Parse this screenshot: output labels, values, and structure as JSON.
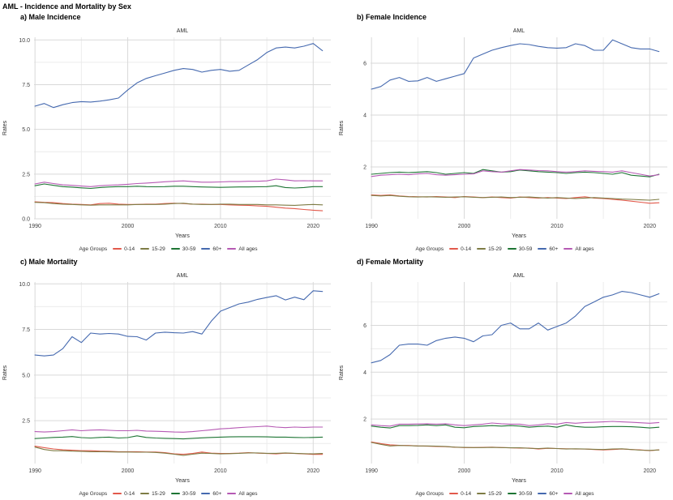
{
  "title": "AML - Incidence and Mortality by Sex",
  "legend": {
    "title": "Age Groups",
    "items": [
      {
        "label": "0-14",
        "color": "#E2594B"
      },
      {
        "label": "15-29",
        "color": "#7E7C45"
      },
      {
        "label": "30-59",
        "color": "#1E7534"
      },
      {
        "label": "60+",
        "color": "#4569AF"
      },
      {
        "label": "All ages",
        "color": "#B65AB4"
      }
    ]
  },
  "axis": {
    "xlabel": "Years",
    "ylabel": "Rates",
    "xticks": [
      1990,
      2000,
      2010,
      2020
    ],
    "xminor": [
      1995,
      2005,
      2015
    ],
    "grid": true,
    "legend_position": "bottom"
  },
  "years": [
    1990,
    1991,
    1992,
    1993,
    1994,
    1995,
    1996,
    1997,
    1998,
    1999,
    2000,
    2001,
    2002,
    2003,
    2004,
    2005,
    2006,
    2007,
    2008,
    2009,
    2010,
    2011,
    2012,
    2013,
    2014,
    2015,
    2016,
    2017,
    2018,
    2019,
    2020,
    2021
  ],
  "chart_data": [
    {
      "id": "a",
      "type": "line",
      "panel_label": "a) Male Incidence",
      "title": "AML",
      "xlabel": "Years",
      "ylabel": "Rates",
      "ylim": [
        0,
        10.15
      ],
      "yticks": [
        0,
        2.5,
        5,
        7.5,
        10
      ],
      "ytick_labels": [
        "0.0",
        "2.5",
        "5.0",
        "7.5",
        "10.0"
      ],
      "yminor": [
        1.25,
        3.75,
        6.25,
        8.75
      ],
      "series": [
        {
          "name": "0-14",
          "values": [
            0.95,
            0.92,
            0.9,
            0.85,
            0.82,
            0.8,
            0.78,
            0.85,
            0.87,
            0.82,
            0.8,
            0.8,
            0.82,
            0.82,
            0.85,
            0.87,
            0.85,
            0.82,
            0.82,
            0.8,
            0.8,
            0.78,
            0.76,
            0.75,
            0.72,
            0.7,
            0.65,
            0.6,
            0.57,
            0.52,
            0.48,
            0.45
          ]
        },
        {
          "name": "15-29",
          "values": [
            0.92,
            0.9,
            0.85,
            0.82,
            0.8,
            0.78,
            0.76,
            0.78,
            0.78,
            0.78,
            0.78,
            0.8,
            0.8,
            0.8,
            0.82,
            0.85,
            0.87,
            0.82,
            0.8,
            0.8,
            0.82,
            0.82,
            0.8,
            0.8,
            0.8,
            0.78,
            0.78,
            0.76,
            0.75,
            0.78,
            0.8,
            0.78
          ]
        },
        {
          "name": "30-59",
          "values": [
            1.85,
            1.95,
            1.87,
            1.8,
            1.77,
            1.73,
            1.7,
            1.75,
            1.78,
            1.8,
            1.8,
            1.82,
            1.8,
            1.79,
            1.8,
            1.82,
            1.82,
            1.8,
            1.78,
            1.77,
            1.76,
            1.77,
            1.78,
            1.78,
            1.79,
            1.8,
            1.85,
            1.75,
            1.72,
            1.75,
            1.8,
            1.8
          ]
        },
        {
          "name": "60+",
          "values": [
            6.3,
            6.45,
            6.22,
            6.38,
            6.5,
            6.55,
            6.53,
            6.58,
            6.65,
            6.75,
            7.2,
            7.6,
            7.85,
            8.0,
            8.15,
            8.3,
            8.4,
            8.35,
            8.2,
            8.3,
            8.35,
            8.25,
            8.3,
            8.6,
            8.9,
            9.3,
            9.55,
            9.6,
            9.55,
            9.65,
            9.8,
            9.4
          ]
        },
        {
          "name": "All ages",
          "values": [
            1.95,
            2.05,
            1.97,
            1.9,
            1.87,
            1.83,
            1.8,
            1.85,
            1.88,
            1.9,
            1.93,
            1.97,
            2.0,
            2.03,
            2.07,
            2.1,
            2.12,
            2.08,
            2.05,
            2.05,
            2.06,
            2.08,
            2.08,
            2.1,
            2.1,
            2.12,
            2.22,
            2.18,
            2.12,
            2.13,
            2.12,
            2.12
          ]
        }
      ]
    },
    {
      "id": "b",
      "type": "line",
      "panel_label": "b) Female Incidence",
      "title": "AML",
      "xlabel": "Years",
      "ylabel": "Rates",
      "ylim": [
        0,
        7.0
      ],
      "yticks": [
        2,
        4,
        6
      ],
      "ytick_labels": [
        "2",
        "4",
        "6"
      ],
      "yminor": [
        1,
        3,
        5,
        7
      ],
      "series": [
        {
          "name": "0-14",
          "values": [
            0.92,
            0.9,
            0.92,
            0.88,
            0.86,
            0.85,
            0.84,
            0.86,
            0.84,
            0.82,
            0.86,
            0.84,
            0.82,
            0.84,
            0.82,
            0.8,
            0.84,
            0.82,
            0.8,
            0.82,
            0.8,
            0.78,
            0.82,
            0.85,
            0.8,
            0.78,
            0.75,
            0.72,
            0.68,
            0.64,
            0.6,
            0.62
          ]
        },
        {
          "name": "15-29",
          "values": [
            0.9,
            0.88,
            0.9,
            0.87,
            0.85,
            0.84,
            0.85,
            0.84,
            0.83,
            0.84,
            0.85,
            0.83,
            0.82,
            0.83,
            0.84,
            0.82,
            0.83,
            0.84,
            0.82,
            0.8,
            0.82,
            0.8,
            0.78,
            0.8,
            0.82,
            0.8,
            0.78,
            0.76,
            0.75,
            0.73,
            0.72,
            0.75
          ]
        },
        {
          "name": "30-59",
          "values": [
            1.72,
            1.75,
            1.78,
            1.8,
            1.78,
            1.8,
            1.82,
            1.78,
            1.72,
            1.75,
            1.78,
            1.75,
            1.9,
            1.85,
            1.8,
            1.82,
            1.88,
            1.85,
            1.82,
            1.8,
            1.78,
            1.75,
            1.78,
            1.8,
            1.78,
            1.75,
            1.72,
            1.78,
            1.68,
            1.65,
            1.62,
            1.72
          ]
        },
        {
          "name": "60+",
          "values": [
            5.0,
            5.1,
            5.35,
            5.45,
            5.3,
            5.32,
            5.45,
            5.3,
            5.4,
            5.5,
            5.6,
            6.2,
            6.35,
            6.5,
            6.6,
            6.68,
            6.75,
            6.72,
            6.65,
            6.6,
            6.58,
            6.6,
            6.75,
            6.68,
            6.5,
            6.5,
            6.9,
            6.75,
            6.6,
            6.55,
            6.55,
            6.45
          ]
        },
        {
          "name": "All ages",
          "values": [
            1.63,
            1.68,
            1.7,
            1.72,
            1.7,
            1.73,
            1.75,
            1.7,
            1.68,
            1.7,
            1.72,
            1.73,
            1.85,
            1.82,
            1.8,
            1.85,
            1.9,
            1.88,
            1.86,
            1.85,
            1.82,
            1.8,
            1.82,
            1.85,
            1.83,
            1.82,
            1.8,
            1.85,
            1.78,
            1.72,
            1.65,
            1.7
          ]
        }
      ]
    },
    {
      "id": "c",
      "type": "line",
      "panel_label": "c) Male Mortality",
      "title": "AML",
      "xlabel": "Years",
      "ylabel": "Rates",
      "ylim": [
        0.15,
        10.1
      ],
      "yticks": [
        2.5,
        5,
        7.5,
        10
      ],
      "ytick_labels": [
        "2.5",
        "5.0",
        "7.5",
        "10.0"
      ],
      "yminor": [
        1.25,
        3.75,
        6.25,
        8.75
      ],
      "series": [
        {
          "name": "0-14",
          "values": [
            1.1,
            1.02,
            0.95,
            0.9,
            0.88,
            0.85,
            0.85,
            0.83,
            0.82,
            0.8,
            0.8,
            0.8,
            0.78,
            0.78,
            0.75,
            0.68,
            0.66,
            0.7,
            0.78,
            0.72,
            0.7,
            0.7,
            0.72,
            0.75,
            0.72,
            0.7,
            0.68,
            0.72,
            0.7,
            0.68,
            0.65,
            0.65
          ]
        },
        {
          "name": "15-29",
          "values": [
            1.05,
            0.92,
            0.85,
            0.85,
            0.83,
            0.82,
            0.8,
            0.8,
            0.79,
            0.78,
            0.78,
            0.77,
            0.77,
            0.76,
            0.72,
            0.66,
            0.6,
            0.66,
            0.72,
            0.7,
            0.68,
            0.69,
            0.71,
            0.73,
            0.73,
            0.71,
            0.71,
            0.73,
            0.71,
            0.69,
            0.68,
            0.7
          ]
        },
        {
          "name": "30-59",
          "values": [
            1.52,
            1.55,
            1.58,
            1.6,
            1.63,
            1.57,
            1.55,
            1.58,
            1.6,
            1.55,
            1.57,
            1.67,
            1.58,
            1.55,
            1.53,
            1.52,
            1.5,
            1.53,
            1.56,
            1.58,
            1.6,
            1.61,
            1.62,
            1.62,
            1.62,
            1.61,
            1.6,
            1.6,
            1.58,
            1.57,
            1.58,
            1.6
          ]
        },
        {
          "name": "60+",
          "values": [
            6.1,
            6.05,
            6.1,
            6.45,
            7.1,
            6.78,
            7.3,
            7.25,
            7.28,
            7.25,
            7.12,
            7.1,
            6.92,
            7.3,
            7.35,
            7.32,
            7.3,
            7.38,
            7.25,
            7.95,
            8.5,
            8.7,
            8.9,
            9.0,
            9.15,
            9.25,
            9.35,
            9.12,
            9.27,
            9.13,
            9.62,
            9.58
          ]
        },
        {
          "name": "All ages",
          "values": [
            1.9,
            1.88,
            1.9,
            1.95,
            2.0,
            1.95,
            1.98,
            2.0,
            1.97,
            1.95,
            1.95,
            1.97,
            1.93,
            1.92,
            1.9,
            1.88,
            1.87,
            1.9,
            1.95,
            2.0,
            2.05,
            2.08,
            2.12,
            2.15,
            2.17,
            2.2,
            2.15,
            2.12,
            2.15,
            2.13,
            2.15,
            2.15
          ]
        }
      ]
    },
    {
      "id": "d",
      "type": "line",
      "panel_label": "d) Female Mortality",
      "title": "AML",
      "xlabel": "Years",
      "ylabel": "Rates",
      "ylim": [
        0.1,
        7.85
      ],
      "yticks": [
        2,
        4,
        6
      ],
      "ytick_labels": [
        "2",
        "4",
        "6"
      ],
      "yminor": [
        1,
        3,
        5,
        7
      ],
      "series": [
        {
          "name": "0-14",
          "values": [
            1.02,
            0.95,
            0.9,
            0.88,
            0.87,
            0.85,
            0.84,
            0.83,
            0.82,
            0.8,
            0.78,
            0.78,
            0.79,
            0.8,
            0.78,
            0.77,
            0.76,
            0.76,
            0.72,
            0.75,
            0.74,
            0.73,
            0.72,
            0.72,
            0.7,
            0.68,
            0.7,
            0.72,
            0.7,
            0.68,
            0.65,
            0.68
          ]
        },
        {
          "name": "15-29",
          "values": [
            1.0,
            0.92,
            0.85,
            0.87,
            0.86,
            0.85,
            0.85,
            0.84,
            0.83,
            0.8,
            0.79,
            0.78,
            0.78,
            0.79,
            0.78,
            0.77,
            0.77,
            0.75,
            0.74,
            0.76,
            0.74,
            0.72,
            0.73,
            0.72,
            0.71,
            0.7,
            0.72,
            0.73,
            0.7,
            0.67,
            0.66,
            0.68
          ]
        },
        {
          "name": "30-59",
          "values": [
            1.7,
            1.65,
            1.62,
            1.72,
            1.72,
            1.73,
            1.75,
            1.72,
            1.75,
            1.65,
            1.63,
            1.68,
            1.7,
            1.72,
            1.7,
            1.72,
            1.7,
            1.65,
            1.68,
            1.7,
            1.65,
            1.75,
            1.68,
            1.65,
            1.65,
            1.67,
            1.68,
            1.68,
            1.67,
            1.65,
            1.62,
            1.65
          ]
        },
        {
          "name": "60+",
          "values": [
            4.4,
            4.5,
            4.75,
            5.15,
            5.2,
            5.2,
            5.15,
            5.35,
            5.45,
            5.5,
            5.45,
            5.3,
            5.55,
            5.6,
            6.0,
            6.1,
            5.85,
            5.85,
            6.1,
            5.8,
            5.95,
            6.1,
            6.4,
            6.8,
            7.0,
            7.2,
            7.3,
            7.45,
            7.4,
            7.3,
            7.2,
            7.35
          ]
        },
        {
          "name": "All ages",
          "values": [
            1.75,
            1.72,
            1.7,
            1.78,
            1.78,
            1.79,
            1.8,
            1.78,
            1.8,
            1.75,
            1.72,
            1.75,
            1.78,
            1.83,
            1.8,
            1.78,
            1.78,
            1.72,
            1.75,
            1.8,
            1.78,
            1.85,
            1.82,
            1.85,
            1.86,
            1.88,
            1.9,
            1.88,
            1.86,
            1.84,
            1.82,
            1.85
          ]
        }
      ]
    }
  ],
  "colors": {
    "grid_major": "#d9d9d9",
    "grid_minor": "#ececec",
    "text": "#404040"
  }
}
